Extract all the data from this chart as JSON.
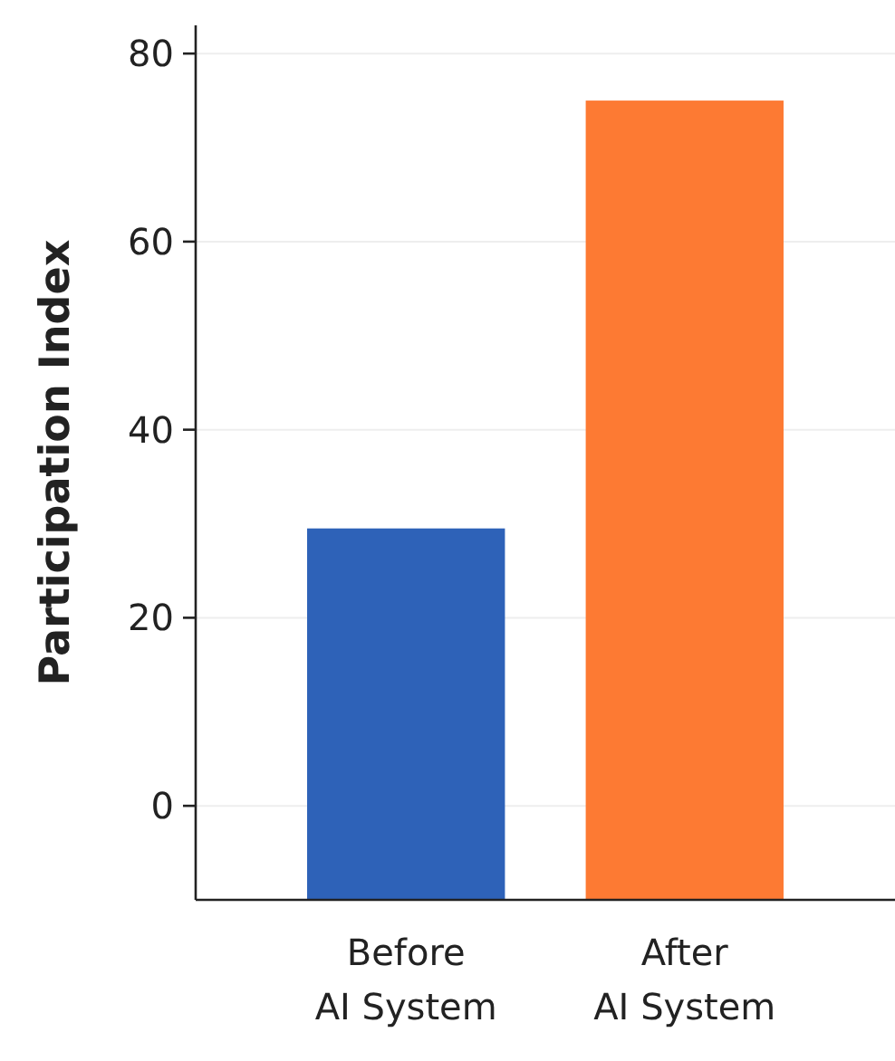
{
  "chart_data": {
    "type": "bar",
    "ylabel": "Participation Index",
    "categories": [
      "Before AI System",
      "After AI System"
    ],
    "values": [
      39.5,
      85
    ],
    "base": [
      -10,
      -10
    ],
    "colors": [
      "#2e62b8",
      "#fd7a33"
    ],
    "ylim": [
      -10,
      83
    ],
    "yticks": [
      0,
      20,
      40,
      60,
      80
    ],
    "grid": "y"
  }
}
